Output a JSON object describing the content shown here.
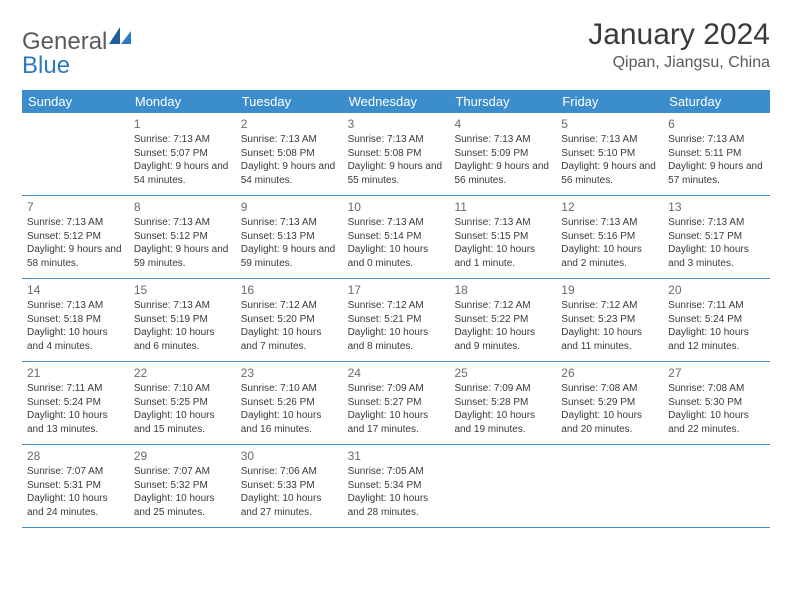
{
  "logo": {
    "text1": "General",
    "text2": "Blue"
  },
  "title": "January 2024",
  "location": "Qipan, Jiangsu, China",
  "colors": {
    "header_bg": "#3c8dcc",
    "header_text": "#ffffff",
    "border": "#3c8dcc",
    "text": "#3a3a3a",
    "muted": "#6a6a6a",
    "logo_gray": "#5a5a5a",
    "logo_blue": "#2a7abf",
    "page_bg": "#ffffff"
  },
  "day_labels": [
    "Sunday",
    "Monday",
    "Tuesday",
    "Wednesday",
    "Thursday",
    "Friday",
    "Saturday"
  ],
  "weeks": [
    [
      {
        "n": "",
        "sr": "",
        "ss": "",
        "dl": ""
      },
      {
        "n": "1",
        "sr": "Sunrise: 7:13 AM",
        "ss": "Sunset: 5:07 PM",
        "dl": "Daylight: 9 hours and 54 minutes."
      },
      {
        "n": "2",
        "sr": "Sunrise: 7:13 AM",
        "ss": "Sunset: 5:08 PM",
        "dl": "Daylight: 9 hours and 54 minutes."
      },
      {
        "n": "3",
        "sr": "Sunrise: 7:13 AM",
        "ss": "Sunset: 5:08 PM",
        "dl": "Daylight: 9 hours and 55 minutes."
      },
      {
        "n": "4",
        "sr": "Sunrise: 7:13 AM",
        "ss": "Sunset: 5:09 PM",
        "dl": "Daylight: 9 hours and 56 minutes."
      },
      {
        "n": "5",
        "sr": "Sunrise: 7:13 AM",
        "ss": "Sunset: 5:10 PM",
        "dl": "Daylight: 9 hours and 56 minutes."
      },
      {
        "n": "6",
        "sr": "Sunrise: 7:13 AM",
        "ss": "Sunset: 5:11 PM",
        "dl": "Daylight: 9 hours and 57 minutes."
      }
    ],
    [
      {
        "n": "7",
        "sr": "Sunrise: 7:13 AM",
        "ss": "Sunset: 5:12 PM",
        "dl": "Daylight: 9 hours and 58 minutes."
      },
      {
        "n": "8",
        "sr": "Sunrise: 7:13 AM",
        "ss": "Sunset: 5:12 PM",
        "dl": "Daylight: 9 hours and 59 minutes."
      },
      {
        "n": "9",
        "sr": "Sunrise: 7:13 AM",
        "ss": "Sunset: 5:13 PM",
        "dl": "Daylight: 9 hours and 59 minutes."
      },
      {
        "n": "10",
        "sr": "Sunrise: 7:13 AM",
        "ss": "Sunset: 5:14 PM",
        "dl": "Daylight: 10 hours and 0 minutes."
      },
      {
        "n": "11",
        "sr": "Sunrise: 7:13 AM",
        "ss": "Sunset: 5:15 PM",
        "dl": "Daylight: 10 hours and 1 minute."
      },
      {
        "n": "12",
        "sr": "Sunrise: 7:13 AM",
        "ss": "Sunset: 5:16 PM",
        "dl": "Daylight: 10 hours and 2 minutes."
      },
      {
        "n": "13",
        "sr": "Sunrise: 7:13 AM",
        "ss": "Sunset: 5:17 PM",
        "dl": "Daylight: 10 hours and 3 minutes."
      }
    ],
    [
      {
        "n": "14",
        "sr": "Sunrise: 7:13 AM",
        "ss": "Sunset: 5:18 PM",
        "dl": "Daylight: 10 hours and 4 minutes."
      },
      {
        "n": "15",
        "sr": "Sunrise: 7:13 AM",
        "ss": "Sunset: 5:19 PM",
        "dl": "Daylight: 10 hours and 6 minutes."
      },
      {
        "n": "16",
        "sr": "Sunrise: 7:12 AM",
        "ss": "Sunset: 5:20 PM",
        "dl": "Daylight: 10 hours and 7 minutes."
      },
      {
        "n": "17",
        "sr": "Sunrise: 7:12 AM",
        "ss": "Sunset: 5:21 PM",
        "dl": "Daylight: 10 hours and 8 minutes."
      },
      {
        "n": "18",
        "sr": "Sunrise: 7:12 AM",
        "ss": "Sunset: 5:22 PM",
        "dl": "Daylight: 10 hours and 9 minutes."
      },
      {
        "n": "19",
        "sr": "Sunrise: 7:12 AM",
        "ss": "Sunset: 5:23 PM",
        "dl": "Daylight: 10 hours and 11 minutes."
      },
      {
        "n": "20",
        "sr": "Sunrise: 7:11 AM",
        "ss": "Sunset: 5:24 PM",
        "dl": "Daylight: 10 hours and 12 minutes."
      }
    ],
    [
      {
        "n": "21",
        "sr": "Sunrise: 7:11 AM",
        "ss": "Sunset: 5:24 PM",
        "dl": "Daylight: 10 hours and 13 minutes."
      },
      {
        "n": "22",
        "sr": "Sunrise: 7:10 AM",
        "ss": "Sunset: 5:25 PM",
        "dl": "Daylight: 10 hours and 15 minutes."
      },
      {
        "n": "23",
        "sr": "Sunrise: 7:10 AM",
        "ss": "Sunset: 5:26 PM",
        "dl": "Daylight: 10 hours and 16 minutes."
      },
      {
        "n": "24",
        "sr": "Sunrise: 7:09 AM",
        "ss": "Sunset: 5:27 PM",
        "dl": "Daylight: 10 hours and 17 minutes."
      },
      {
        "n": "25",
        "sr": "Sunrise: 7:09 AM",
        "ss": "Sunset: 5:28 PM",
        "dl": "Daylight: 10 hours and 19 minutes."
      },
      {
        "n": "26",
        "sr": "Sunrise: 7:08 AM",
        "ss": "Sunset: 5:29 PM",
        "dl": "Daylight: 10 hours and 20 minutes."
      },
      {
        "n": "27",
        "sr": "Sunrise: 7:08 AM",
        "ss": "Sunset: 5:30 PM",
        "dl": "Daylight: 10 hours and 22 minutes."
      }
    ],
    [
      {
        "n": "28",
        "sr": "Sunrise: 7:07 AM",
        "ss": "Sunset: 5:31 PM",
        "dl": "Daylight: 10 hours and 24 minutes."
      },
      {
        "n": "29",
        "sr": "Sunrise: 7:07 AM",
        "ss": "Sunset: 5:32 PM",
        "dl": "Daylight: 10 hours and 25 minutes."
      },
      {
        "n": "30",
        "sr": "Sunrise: 7:06 AM",
        "ss": "Sunset: 5:33 PM",
        "dl": "Daylight: 10 hours and 27 minutes."
      },
      {
        "n": "31",
        "sr": "Sunrise: 7:05 AM",
        "ss": "Sunset: 5:34 PM",
        "dl": "Daylight: 10 hours and 28 minutes."
      },
      {
        "n": "",
        "sr": "",
        "ss": "",
        "dl": ""
      },
      {
        "n": "",
        "sr": "",
        "ss": "",
        "dl": ""
      },
      {
        "n": "",
        "sr": "",
        "ss": "",
        "dl": ""
      }
    ]
  ]
}
